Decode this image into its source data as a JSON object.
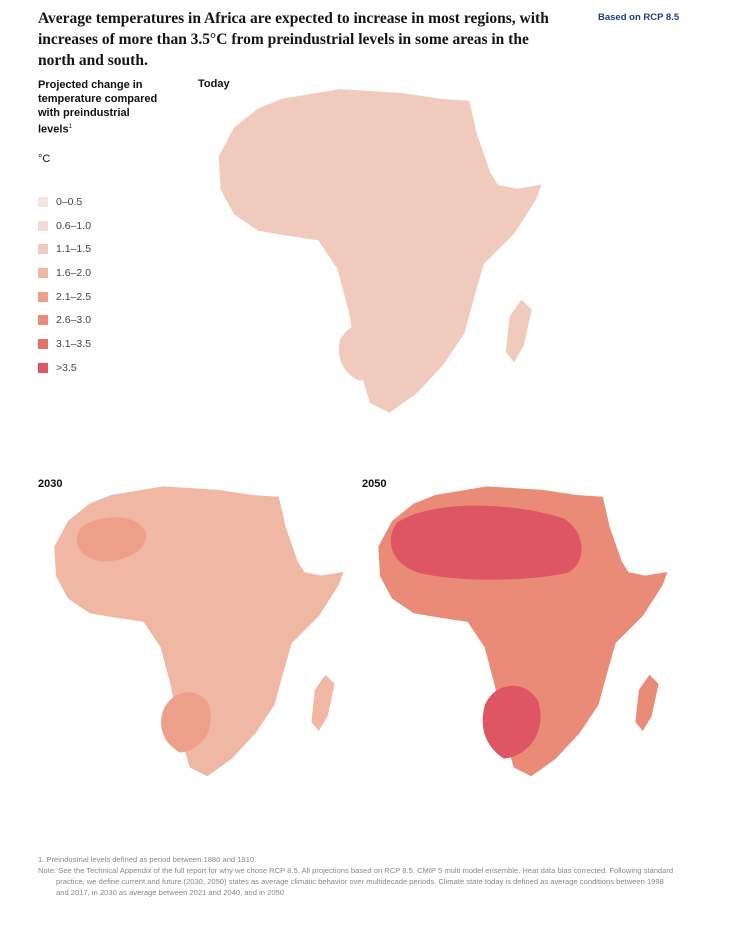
{
  "headline": "Average temperatures in Africa are expected to increase in most regions, with increases of more than 3.5°C from preindustrial levels in some areas in the north and south.",
  "scenario_note": "Based on RCP 8.5",
  "legend": {
    "title": "Projected change in temperature compared with preindustrial levels",
    "title_footnote_marker": "1",
    "unit": "°C",
    "bins": [
      {
        "label": "0–0.5",
        "color": "#f3e6e1"
      },
      {
        "label": "0.6–1.0",
        "color": "#f1dcd5"
      },
      {
        "label": "1.1–1.5",
        "color": "#f0cbbd"
      },
      {
        "label": "1.6–2.0",
        "color": "#f0b7a4"
      },
      {
        "label": "2.1–2.5",
        "color": "#ee9f89"
      },
      {
        "label": "2.6–3.0",
        "color": "#ea8b78"
      },
      {
        "label": "3.1–3.5",
        "color": "#e57269"
      },
      {
        "label": ">3.5",
        "color": "#de5563"
      }
    ]
  },
  "maps": [
    {
      "label": "Today",
      "base_bin": "1.1–1.5",
      "hotspot_bin": "1.1–1.5"
    },
    {
      "label": "2030",
      "base_bin": "1.6–2.0",
      "hotspot_bin": "2.1–2.5"
    },
    {
      "label": "2050",
      "base_bin": "2.6–3.0",
      "hotspot_bin": ">3.5"
    }
  ],
  "footnotes": [
    "1. Preindustrial levels defined as period between 1880 and 1910.",
    "Note: See the Technical Appendix of the full report for why we chose RCP 8.5. All projections based on RCP 8.5, CMIP 5 multi model ensemble. Heat data bias corrected. Following standard practice, we define current and future (2030, 2050) states as average climatic behavior over multidecade periods. Climate state today is defined as average conditions between 1998 and 2017, in 2030 as average between 2021 and 2040, and in 2050"
  ]
}
